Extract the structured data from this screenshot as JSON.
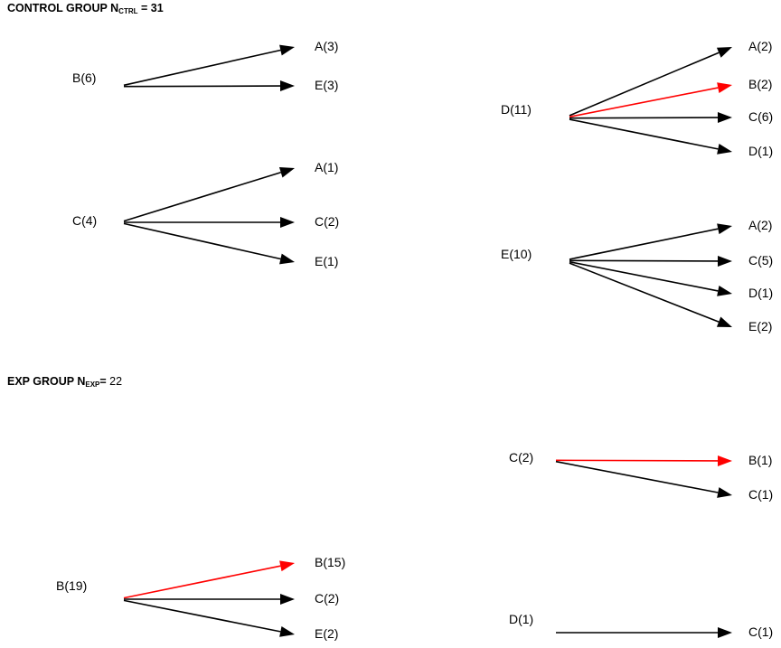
{
  "control_heading": {
    "prefix": "CONTROL GROUP N",
    "sub": "CTRL",
    "suffix": " = 31"
  },
  "exp_heading": {
    "prefix": "EXP GROUP N",
    "sub": "EXP",
    "suffix": "= ",
    "value": "22"
  },
  "colors": {
    "default_arrow": "#000000",
    "highlight_arrow": "#ff0000",
    "text": "#000000"
  },
  "control_group": {
    "b": {
      "source": "B(6)",
      "targets": [
        "A(3)",
        "E(3)"
      ],
      "highlight": [
        false,
        false
      ]
    },
    "c": {
      "source": "C(4)",
      "targets": [
        "A(1)",
        "C(2)",
        "E(1)"
      ],
      "highlight": [
        false,
        false,
        false
      ]
    },
    "d": {
      "source": "D(11)",
      "targets": [
        "A(2)",
        "B(2)",
        "C(6)",
        "D(1)"
      ],
      "highlight": [
        false,
        true,
        false,
        false
      ]
    },
    "e": {
      "source": "E(10)",
      "targets": [
        "A(2)",
        "C(5)",
        "D(1)",
        "E(2)"
      ],
      "highlight": [
        false,
        false,
        false,
        false
      ]
    }
  },
  "exp_group": {
    "b": {
      "source": "B(19)",
      "targets": [
        "B(15)",
        "C(2)",
        "E(2)"
      ],
      "highlight": [
        true,
        false,
        false
      ]
    },
    "c": {
      "source": "C(2)",
      "targets": [
        "B(1)",
        "C(1)"
      ],
      "highlight": [
        true,
        false
      ]
    },
    "d": {
      "source": "D(1)",
      "targets": [
        "C(1)"
      ],
      "highlight": [
        false
      ]
    }
  }
}
